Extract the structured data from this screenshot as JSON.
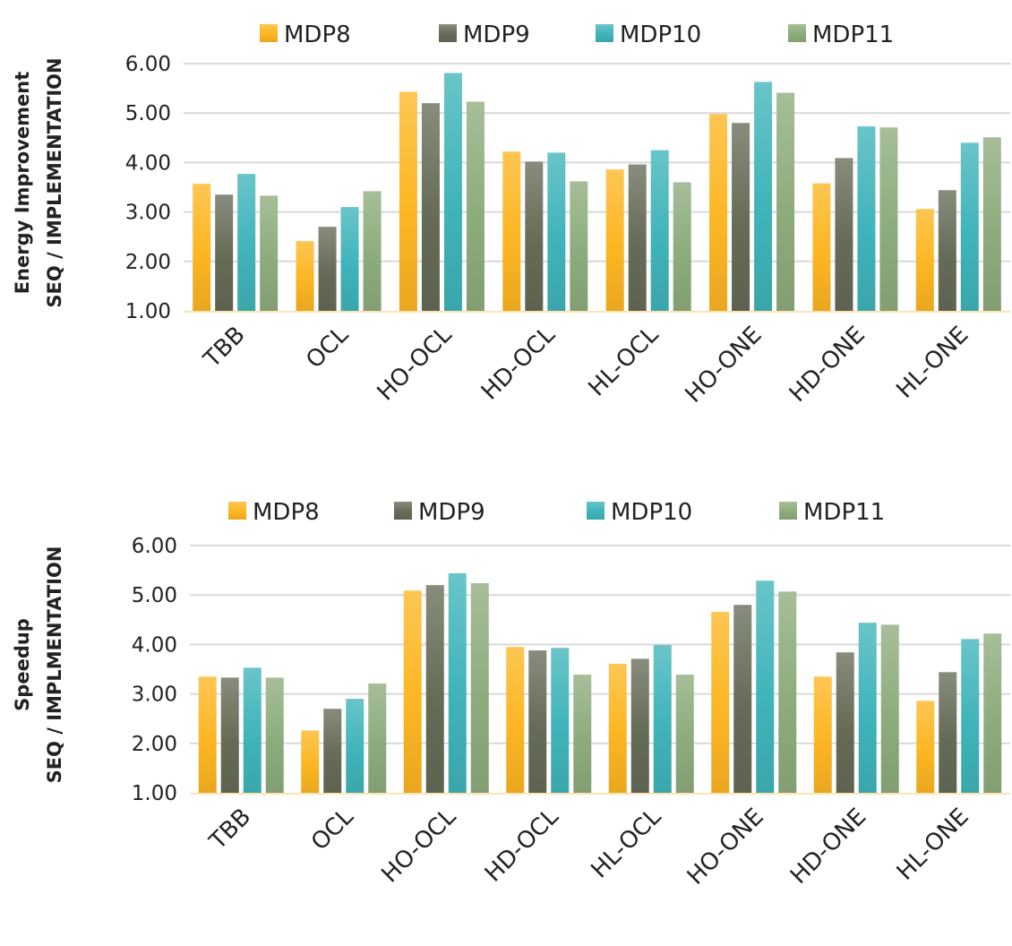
{
  "colors": {
    "MDP8": "#FDB623",
    "MDP9": "#666B57",
    "MDP10": "#3FB4BA",
    "MDP11": "#8DAC7C",
    "grid": "#D9D9D9",
    "baseline": "#FCE4B0"
  },
  "chart_data": [
    {
      "type": "bar",
      "ylabel_line1": "Energy Improvement",
      "ylabel_line2": "SEQ / IMPLEMENTATION",
      "ylim": [
        1,
        6
      ],
      "yticks": [
        "1.00",
        "2.00",
        "3.00",
        "4.00",
        "5.00",
        "6.00"
      ],
      "grid": true,
      "legend": "top",
      "categories": [
        "TBB",
        "OCL",
        "HO-OCL",
        "HD-OCL",
        "HL-OCL",
        "HO-ONE",
        "HD-ONE",
        "HL-ONE"
      ],
      "series": [
        {
          "name": "MDP8",
          "values": [
            3.57,
            2.41,
            5.43,
            4.22,
            3.86,
            4.98,
            3.58,
            3.06
          ]
        },
        {
          "name": "MDP9",
          "values": [
            3.35,
            2.7,
            5.2,
            4.02,
            3.96,
            4.8,
            4.09,
            3.44
          ]
        },
        {
          "name": "MDP10",
          "values": [
            3.77,
            3.1,
            5.81,
            4.2,
            4.25,
            5.63,
            4.73,
            4.4
          ]
        },
        {
          "name": "MDP11",
          "values": [
            3.33,
            3.42,
            5.23,
            3.62,
            3.6,
            5.41,
            4.71,
            4.51
          ]
        }
      ]
    },
    {
      "type": "bar",
      "ylabel_line1": "Speedup",
      "ylabel_line2": "SEQ / IMPLMENTATION",
      "ylim": [
        1,
        6
      ],
      "yticks": [
        "1.00",
        "2.00",
        "3.00",
        "4.00",
        "5.00",
        "6.00"
      ],
      "grid": true,
      "legend": "top",
      "categories": [
        "TBB",
        "OCL",
        "HO-OCL",
        "HD-OCL",
        "HL-OCL",
        "HO-ONE",
        "HD-ONE",
        "HL-ONE"
      ],
      "series": [
        {
          "name": "MDP8",
          "values": [
            3.35,
            2.26,
            5.09,
            3.95,
            3.61,
            4.66,
            3.35,
            2.86
          ]
        },
        {
          "name": "MDP9",
          "values": [
            3.33,
            2.7,
            5.2,
            3.88,
            3.71,
            4.8,
            3.84,
            3.44
          ]
        },
        {
          "name": "MDP10",
          "values": [
            3.53,
            2.9,
            5.44,
            3.93,
            3.99,
            5.29,
            4.44,
            4.11
          ]
        },
        {
          "name": "MDP11",
          "values": [
            3.33,
            3.21,
            5.24,
            3.39,
            3.39,
            5.07,
            4.4,
            4.22
          ]
        }
      ]
    }
  ]
}
